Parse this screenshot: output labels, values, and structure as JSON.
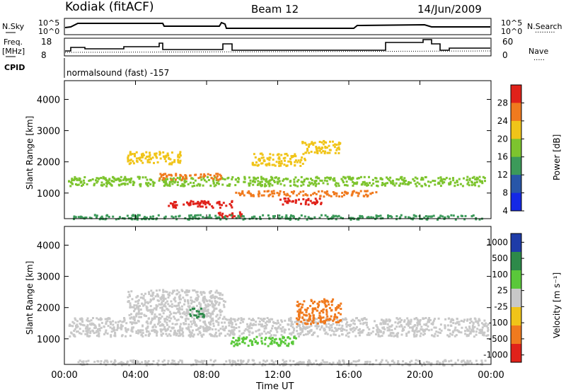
{
  "header": {
    "radar": "Kodiak (fitACF)",
    "beam": "Beam 12",
    "date": "14/Jun/2009"
  },
  "top_panels": {
    "nsky_label": "N.Sky",
    "nsky_ticks": [
      "10^5",
      "10^0"
    ],
    "nsearch_label": "N.Search",
    "nsearch_ticks": [
      "10^5",
      "10^0"
    ],
    "freq_label_1": "Freq.",
    "freq_label_2": "[MHz]",
    "freq_ticks": [
      "18",
      "8"
    ],
    "nave_label": "Nave",
    "nave_ticks": [
      "60",
      "0"
    ],
    "cpid_label": "CPID",
    "cpid_text": "normalsound (fast) -157"
  },
  "chart_data": [
    {
      "type": "heatmap",
      "title": "",
      "ylabel": "Slant Range [km]",
      "xlabel": "Time UT",
      "x_ticks": [
        "00:00",
        "04:00",
        "08:00",
        "12:00",
        "16:00",
        "20:00",
        "00:00"
      ],
      "y_ticks": [
        "1000",
        "2000",
        "3000",
        "4000"
      ],
      "xlim": [
        0,
        24
      ],
      "ylim": [
        180,
        4600
      ],
      "colorbar": {
        "label": "Power [dB]",
        "ticks": [
          "28",
          "24",
          "20",
          "16",
          "12",
          "8",
          "4"
        ],
        "colors": [
          "#e0221a",
          "#f07a1e",
          "#f0c419",
          "#7dc42e",
          "#3c9a5a",
          "#2856a8",
          "#1428e6"
        ]
      },
      "bands": [
        {
          "t0": 0.2,
          "t1": 23.8,
          "r0": 1250,
          "r1": 1550,
          "level": 3
        },
        {
          "t0": 5.3,
          "t1": 8.8,
          "r0": 1450,
          "r1": 1650,
          "level": 1
        },
        {
          "t0": 5.6,
          "t1": 9.4,
          "r0": 560,
          "r1": 780,
          "level": 0
        },
        {
          "t0": 9.6,
          "t1": 17.5,
          "r0": 920,
          "r1": 1100,
          "level": 1
        },
        {
          "t0": 12.0,
          "t1": 14.5,
          "r0": 660,
          "r1": 860,
          "level": 0
        },
        {
          "t0": 8.6,
          "t1": 10.2,
          "r0": 250,
          "r1": 420,
          "level": 0
        },
        {
          "t0": 3.5,
          "t1": 6.5,
          "r0": 1950,
          "r1": 2350,
          "level": 2
        },
        {
          "t0": 10.5,
          "t1": 13.5,
          "r0": 1900,
          "r1": 2300,
          "level": 2
        },
        {
          "t0": 13.3,
          "t1": 15.5,
          "r0": 2300,
          "r1": 2700,
          "level": 2
        },
        {
          "t0": 0.3,
          "t1": 23.7,
          "r0": 180,
          "r1": 330,
          "level": 4
        }
      ]
    },
    {
      "type": "heatmap",
      "title": "",
      "ylabel": "Slant Range [km]",
      "xlabel": "Time UT",
      "x_ticks": [
        "00:00",
        "04:00",
        "08:00",
        "12:00",
        "16:00",
        "20:00",
        "00:00"
      ],
      "y_ticks": [
        "1000",
        "2000",
        "3000",
        "4000"
      ],
      "xlim": [
        0,
        24
      ],
      "ylim": [
        180,
        4600
      ],
      "colorbar": {
        "label": "Velocity [m s⁻¹]",
        "ticks": [
          "1000",
          "500",
          "100",
          "25",
          "-25",
          "-100",
          "-500",
          "-1000"
        ],
        "colors": [
          "#1e3ca8",
          "#2d8a4a",
          "#5ac83a",
          "#c8c8c8",
          "#f0c419",
          "#f07a1e",
          "#e0221a"
        ]
      },
      "bands": [
        {
          "t0": 0.2,
          "t1": 23.8,
          "r0": 1100,
          "r1": 1700,
          "level": 3
        },
        {
          "t0": 3.5,
          "t1": 9.0,
          "r0": 1700,
          "r1": 2600,
          "level": 3
        },
        {
          "t0": 9.3,
          "t1": 13.0,
          "r0": 800,
          "r1": 1100,
          "level": 2
        },
        {
          "t0": 13.0,
          "t1": 15.5,
          "r0": 1500,
          "r1": 2300,
          "level": 5
        },
        {
          "t0": 7.0,
          "t1": 7.8,
          "r0": 1700,
          "r1": 2000,
          "level": 1
        },
        {
          "t0": 0.3,
          "t1": 23.7,
          "r0": 180,
          "r1": 350,
          "level": 3
        }
      ]
    }
  ],
  "colors": {
    "frame": "#000000",
    "background": "#ffffff"
  }
}
